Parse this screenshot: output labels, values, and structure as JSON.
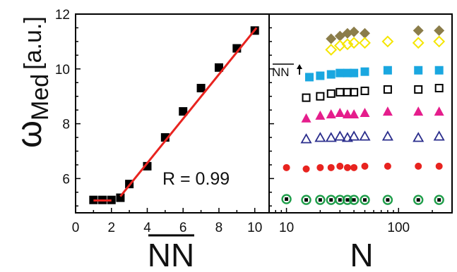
{
  "chart_data": [
    {
      "type": "scatter",
      "title": "",
      "xlabel": "NN",
      "xlabel_overline": true,
      "ylabel_main": "ω",
      "ylabel_sub": "Med",
      "ylabel_unit": "[a.u.]",
      "xlim": [
        0,
        10.8
      ],
      "ylim": [
        4.75,
        12
      ],
      "xticks": [
        0,
        2,
        4,
        6,
        8,
        10
      ],
      "yticks": [
        6,
        8,
        10,
        12
      ],
      "grid": false,
      "annotation": "R = 0.99",
      "series": [
        {
          "marker": "filled-square",
          "color": "#000000",
          "x": [
            1,
            1.5,
            2,
            2.5,
            3,
            4,
            5,
            6,
            7,
            8,
            9,
            10
          ],
          "y": [
            5.22,
            5.22,
            5.22,
            5.3,
            5.8,
            6.45,
            7.5,
            8.45,
            9.3,
            10.05,
            10.75,
            11.4
          ]
        }
      ],
      "fit_lines": [
        {
          "color": "#e8231f",
          "x": [
            1,
            2
          ],
          "y": [
            5.2,
            5.2
          ]
        },
        {
          "color": "#e8231f",
          "x": [
            2.5,
            10.1
          ],
          "y": [
            5.35,
            11.5
          ]
        }
      ]
    },
    {
      "type": "scatter",
      "title": "",
      "xlabel": "N",
      "xscale": "log",
      "xlim": [
        7,
        300
      ],
      "xticks": [
        10,
        100
      ],
      "annotation": "NN",
      "annotation_overline": true,
      "annotation_arrow": "up",
      "series": [
        {
          "marker": "filled-diamond",
          "color": "#8b7d4a",
          "x": [
            25,
            30,
            35,
            40,
            50,
            150,
            230
          ],
          "y": [
            11.1,
            11.2,
            11.3,
            11.35,
            11.3,
            11.4,
            11.4
          ]
        },
        {
          "marker": "open-diamond",
          "color": "#f5e600",
          "x": [
            25,
            30,
            35,
            40,
            50,
            80,
            150,
            230
          ],
          "y": [
            10.7,
            10.85,
            10.9,
            10.95,
            10.95,
            11.0,
            10.95,
            11.0
          ]
        },
        {
          "marker": "filled-square",
          "color": "#1aa7e0",
          "x": [
            16,
            20,
            25,
            30,
            35,
            40,
            50,
            80,
            150,
            230
          ],
          "y": [
            9.7,
            9.75,
            9.8,
            9.85,
            9.85,
            9.85,
            9.9,
            9.95,
            9.95,
            9.95
          ]
        },
        {
          "marker": "open-square",
          "color": "#000000",
          "x": [
            15,
            20,
            25,
            30,
            35,
            40,
            50,
            80,
            150,
            230
          ],
          "y": [
            8.95,
            9.0,
            9.1,
            9.15,
            9.15,
            9.15,
            9.2,
            9.25,
            9.25,
            9.3
          ]
        },
        {
          "marker": "filled-triangle",
          "color": "#e51d8c",
          "x": [
            15,
            20,
            25,
            30,
            35,
            40,
            50,
            80,
            150,
            230
          ],
          "y": [
            8.2,
            8.3,
            8.35,
            8.4,
            8.35,
            8.35,
            8.4,
            8.45,
            8.45,
            8.45
          ]
        },
        {
          "marker": "open-triangle",
          "color": "#2a2d8c",
          "x": [
            15,
            20,
            25,
            30,
            35,
            40,
            50,
            80,
            150,
            230
          ],
          "y": [
            7.45,
            7.5,
            7.5,
            7.55,
            7.5,
            7.55,
            7.55,
            7.55,
            7.5,
            7.55
          ]
        },
        {
          "marker": "filled-circle",
          "color": "#e8231f",
          "x": [
            10,
            15,
            20,
            25,
            30,
            35,
            40,
            50,
            80,
            150,
            230
          ],
          "y": [
            6.4,
            6.35,
            6.4,
            6.4,
            6.45,
            6.4,
            6.4,
            6.45,
            6.45,
            6.45,
            6.45
          ]
        },
        {
          "marker": "circled-square",
          "color": "#1f9e4a",
          "x": [
            10,
            15,
            20,
            25,
            30,
            35,
            40,
            50,
            80,
            150,
            230
          ],
          "y": [
            5.25,
            5.22,
            5.22,
            5.22,
            5.22,
            5.22,
            5.22,
            5.22,
            5.22,
            5.22,
            5.22
          ]
        }
      ]
    }
  ]
}
